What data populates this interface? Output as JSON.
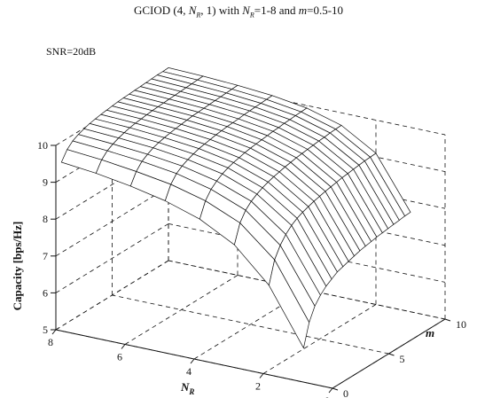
{
  "chart_data": {
    "type": "surface",
    "title": {
      "prefix": "GCIOD (4, ",
      "nr_sym": "N",
      "nr_sub": "R",
      "mid": ", 1) with ",
      "nr2_sym": "N",
      "nr2_sub": "R",
      "range1": "=1-8 and ",
      "m_sym": "m",
      "range2": "=0.5-10"
    },
    "annotation": "SNR=20dB",
    "zlabel": "Capacity [bps/Hz]",
    "xlabel_sym": "N",
    "xlabel_sub": "R",
    "ylabel": "m",
    "x_axis": {
      "min": 0,
      "max": 8,
      "ticks": [
        "0",
        "2",
        "4",
        "6",
        "8"
      ]
    },
    "y_axis": {
      "min": 0,
      "max": 10,
      "ticks": [
        "0",
        "5",
        "10"
      ]
    },
    "z_axis": {
      "min": 5,
      "max": 10,
      "ticks": [
        "5",
        "6",
        "7",
        "8",
        "9",
        "10"
      ]
    },
    "nr_values": [
      1,
      2,
      3,
      4,
      5,
      6,
      7,
      8
    ],
    "m_values": [
      0.5,
      1,
      1.5,
      2,
      2.5,
      3,
      3.5,
      4,
      4.5,
      5,
      5.5,
      6,
      6.5,
      7,
      7.5,
      8,
      8.5,
      9,
      9.5,
      10
    ],
    "capacity_rows_by_nr": [
      [
        5.8,
        6.4,
        6.75,
        6.95,
        7.1,
        7.2,
        7.3,
        7.35,
        7.4,
        7.45,
        7.5,
        7.53,
        7.56,
        7.59,
        7.61,
        7.63,
        7.65,
        7.67,
        7.69,
        7.7
      ],
      [
        7.3,
        7.9,
        8.2,
        8.4,
        8.55,
        8.65,
        8.72,
        8.78,
        8.83,
        8.87,
        8.91,
        8.94,
        8.97,
        9.0,
        9.02,
        9.04,
        9.06,
        9.08,
        9.09,
        9.1
      ],
      [
        8.2,
        8.7,
        8.95,
        9.1,
        9.2,
        9.28,
        9.34,
        9.39,
        9.43,
        9.47,
        9.5,
        9.53,
        9.55,
        9.57,
        9.59,
        9.61,
        9.62,
        9.64,
        9.65,
        9.66
      ],
      [
        8.7,
        9.1,
        9.32,
        9.45,
        9.55,
        9.62,
        9.67,
        9.71,
        9.75,
        9.78,
        9.8,
        9.82,
        9.84,
        9.86,
        9.87,
        9.89,
        9.9,
        9.91,
        9.92,
        9.93
      ],
      [
        9.0,
        9.35,
        9.55,
        9.66,
        9.74,
        9.8,
        9.85,
        9.88,
        9.91,
        9.94,
        9.96,
        9.98,
        9.99,
        10.0,
        10.02,
        10.03,
        10.04,
        10.05,
        10.06,
        10.07
      ],
      [
        9.2,
        9.5,
        9.68,
        9.78,
        9.86,
        9.91,
        9.95,
        9.98,
        10.01,
        10.03,
        10.05,
        10.07,
        10.08,
        10.09,
        10.1,
        10.11,
        10.12,
        10.13,
        10.14,
        10.15
      ],
      [
        9.35,
        9.62,
        9.77,
        9.86,
        9.93,
        9.98,
        10.02,
        10.05,
        10.07,
        10.09,
        10.11,
        10.12,
        10.13,
        10.14,
        10.15,
        10.16,
        10.17,
        10.18,
        10.19,
        10.2
      ],
      [
        9.45,
        9.7,
        9.84,
        9.92,
        9.98,
        10.03,
        10.06,
        10.09,
        10.11,
        10.13,
        10.15,
        10.16,
        10.17,
        10.18,
        10.19,
        10.2,
        10.21,
        10.22,
        10.22,
        10.23
      ]
    ],
    "grid": true,
    "colors": {
      "line": "#111111",
      "face": "#ffffff"
    }
  }
}
